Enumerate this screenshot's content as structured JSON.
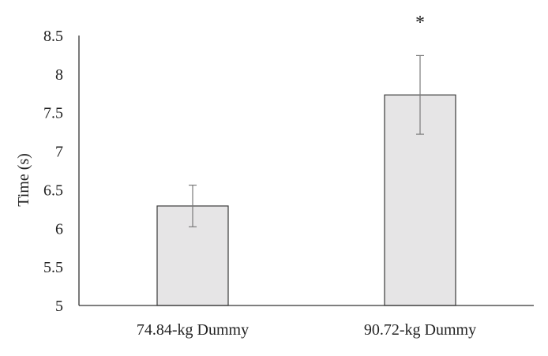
{
  "chart_data": {
    "type": "bar",
    "title": "",
    "xlabel": "",
    "ylabel": "Time (s)",
    "ylim": [
      5,
      8.5
    ],
    "yticks": [
      "5",
      "5.5",
      "6",
      "6.5",
      "7",
      "7.5",
      "8",
      "8.5"
    ],
    "grid": false,
    "legend": "none",
    "categories": [
      "74.84-kg Dummy",
      "90.72-kg Dummy"
    ],
    "values": [
      6.29,
      7.73
    ],
    "error_low": [
      6.02,
      7.22
    ],
    "error_high": [
      6.56,
      8.24
    ],
    "annotations": [
      "",
      "*"
    ],
    "colors": {
      "bar_fill": "#e6e5e6",
      "bar_stroke": "#3a3a3a",
      "axis": "#333333",
      "error_bar": "#7a7a7a"
    }
  }
}
